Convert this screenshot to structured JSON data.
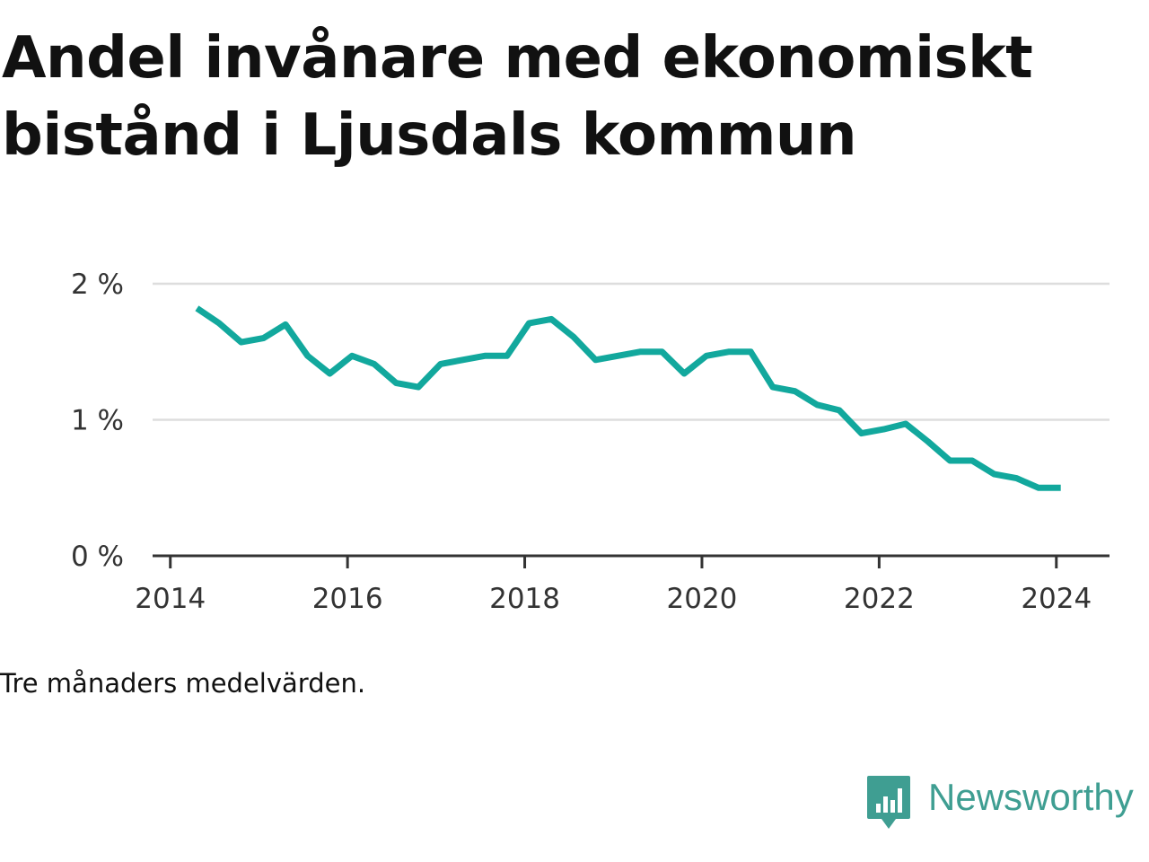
{
  "title": "Andel invånare med ekonomiskt bistånd i Ljusdals kommun",
  "note": "Tre månaders medelvärden.",
  "brand": {
    "name": "Newsworthy",
    "icon": "newsworthy-logo-icon",
    "color": "#3f9e92"
  },
  "chart_data": {
    "type": "line",
    "title": "Andel invånare med ekonomiskt bistånd i Ljusdals kommun",
    "xlabel": "",
    "ylabel": "",
    "grid": true,
    "line_color": "#12a89d",
    "xlim": [
      2013.8,
      2024.6
    ],
    "ylim": [
      0,
      2
    ],
    "x_ticks": [
      2014,
      2016,
      2018,
      2020,
      2022,
      2024
    ],
    "x_tick_labels": [
      "2014",
      "2016",
      "2018",
      "2020",
      "2022",
      "2024"
    ],
    "y_ticks": [
      0,
      1,
      2
    ],
    "y_tick_labels": [
      "0 %",
      "1 %",
      "2 %"
    ],
    "series": [
      {
        "x": [
          2014.3,
          2014.55,
          2014.8,
          2015.05,
          2015.3,
          2015.55,
          2015.8,
          2016.05,
          2016.3,
          2016.55,
          2016.8,
          2017.05,
          2017.3,
          2017.55,
          2017.8,
          2018.05,
          2018.3,
          2018.55,
          2018.8,
          2019.05,
          2019.3,
          2019.55,
          2019.8,
          2020.05,
          2020.3,
          2020.55,
          2020.8,
          2021.05,
          2021.3,
          2021.55,
          2021.8,
          2022.05,
          2022.3,
          2022.55,
          2022.8,
          2023.05,
          2023.3,
          2023.55,
          2023.8,
          2024.05
        ],
        "y": [
          1.82,
          1.71,
          1.57,
          1.6,
          1.7,
          1.47,
          1.34,
          1.47,
          1.41,
          1.27,
          1.24,
          1.41,
          1.44,
          1.47,
          1.47,
          1.71,
          1.74,
          1.61,
          1.44,
          1.47,
          1.5,
          1.5,
          1.34,
          1.47,
          1.5,
          1.5,
          1.24,
          1.21,
          1.11,
          1.07,
          0.9,
          0.93,
          0.97,
          0.84,
          0.7,
          0.7,
          0.6,
          0.57,
          0.5,
          0.5
        ]
      }
    ]
  }
}
